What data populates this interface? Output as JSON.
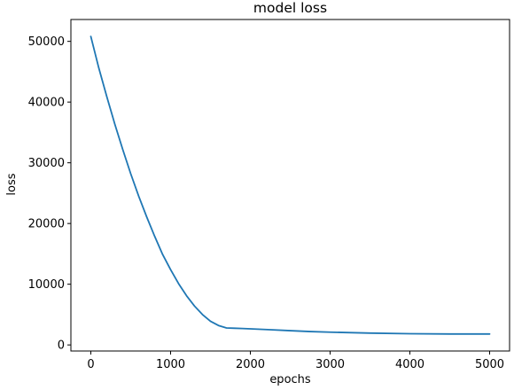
{
  "chart_data": {
    "type": "line",
    "title": "model loss",
    "xlabel": "epochs",
    "ylabel": "loss",
    "xlim": [
      -250,
      5250
    ],
    "ylim": [
      -1000,
      53600
    ],
    "xticks": [
      0,
      1000,
      2000,
      3000,
      4000,
      5000
    ],
    "yticks": [
      0,
      10000,
      20000,
      30000,
      40000,
      50000
    ],
    "grid": false,
    "legend": "none",
    "color": "#1f77b4",
    "series": [
      {
        "x": [
          0,
          100,
          200,
          300,
          400,
          500,
          600,
          700,
          800,
          900,
          1000,
          1100,
          1200,
          1300,
          1400,
          1500,
          1600,
          1700,
          1800,
          1900,
          2000,
          2250,
          2500,
          2750,
          3000,
          3500,
          4000,
          4500,
          5000
        ],
        "values": [
          50800,
          45600,
          40900,
          36400,
          32200,
          28200,
          24500,
          21100,
          17900,
          14900,
          12400,
          10100,
          8100,
          6400,
          5000,
          3900,
          3200,
          2800,
          2750,
          2700,
          2650,
          2500,
          2350,
          2200,
          2100,
          1950,
          1850,
          1800,
          1800
        ]
      }
    ]
  }
}
